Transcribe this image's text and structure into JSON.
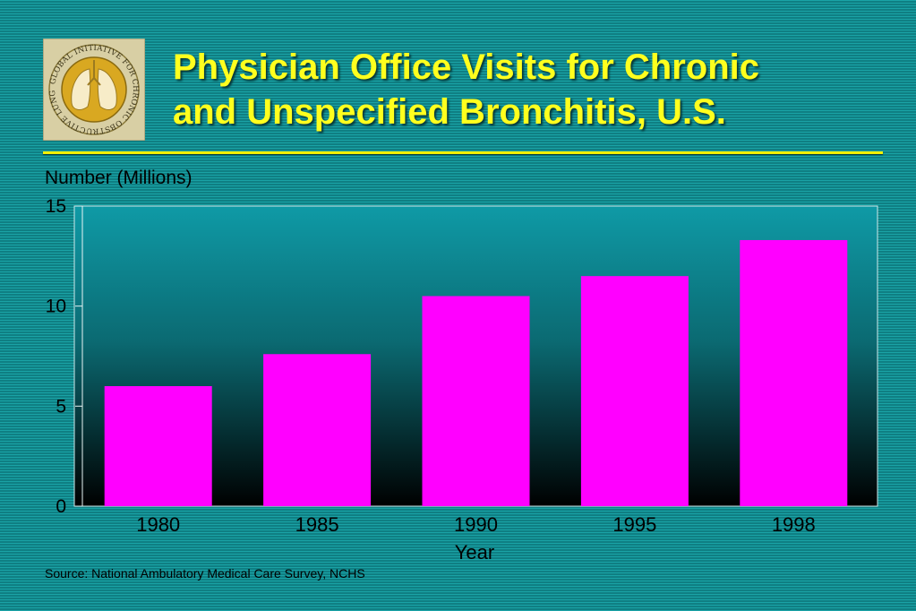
{
  "slide": {
    "title_line1": "Physician Office Visits for Chronic",
    "title_line2": "and Unspecified Bronchitis, U.S.",
    "source": "Source: National Ambulatory  Medical Care Survey, NCHS",
    "logo_text": "GLOBAL INITIATIVE FOR CHRONIC OBSTRUCTIVE LUNG DISEASE"
  },
  "colors": {
    "title": "#ffff1e",
    "bar": "#ff00ff",
    "plot_top": "#0f9aa6",
    "plot_bottom": "#000000",
    "background": "#128c8f"
  },
  "chart_data": {
    "type": "bar",
    "ylabel": "Number (Millions)",
    "xlabel": "Year",
    "categories": [
      "1980",
      "1985",
      "1990",
      "1995",
      "1998"
    ],
    "values": [
      6.0,
      7.6,
      10.5,
      11.5,
      13.3
    ],
    "ylim": [
      0,
      15
    ],
    "yticks": [
      0,
      5,
      10,
      15
    ],
    "grid": false,
    "legend": "none"
  }
}
